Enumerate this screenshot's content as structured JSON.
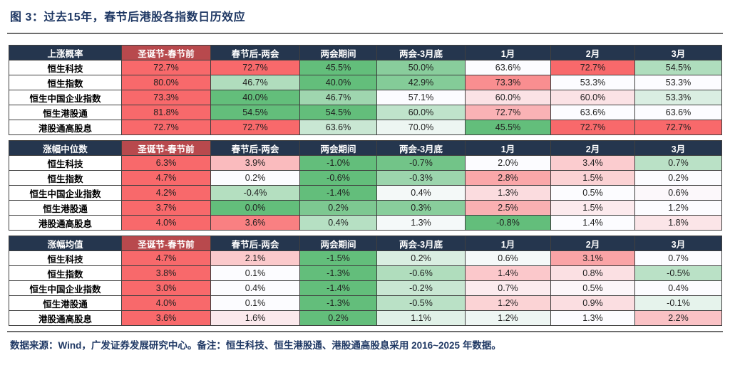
{
  "title": "图 3：过去15年，春节后港股各指数日历效应",
  "footer": "数据来源：Wind，广发证券发展研究中心。备注：恒生科技、恒生港股通、港股通高股息采用 2016~2025 年数据。",
  "colors": {
    "title_text": "#1F3864",
    "header_bg": "#25364E",
    "header_highlight_bg": "#B8494D",
    "header_text": "#FFFFFF",
    "scale_green": "#63BE7B",
    "scale_mid": "#FCFCFF",
    "scale_red": "#F8696B",
    "cell_border": "#404040"
  },
  "value_format": {
    "decimals": 1,
    "suffix": "%"
  },
  "chart_data": [
    {
      "type": "heatmap",
      "title": "上涨概率",
      "columns": [
        "圣诞节-春节前",
        "春节后-两会",
        "两会期间",
        "两会-3月底",
        "1月",
        "2月",
        "3月"
      ],
      "color_scale": {
        "min_color": "#63BE7B",
        "mid_color": "#FCFCFF",
        "max_color": "#F8696B",
        "midpoint": "row median (50th percentile)"
      },
      "rows": [
        {
          "label": "恒生科技",
          "values": [
            72.7,
            72.7,
            45.5,
            50.0,
            63.6,
            72.7,
            54.5
          ]
        },
        {
          "label": "恒生指数",
          "values": [
            80.0,
            46.7,
            40.0,
            42.9,
            73.3,
            53.3,
            53.3
          ]
        },
        {
          "label": "恒生中国企业指数",
          "values": [
            73.3,
            40.0,
            46.7,
            57.1,
            60.0,
            60.0,
            53.3
          ]
        },
        {
          "label": "恒生港股通",
          "values": [
            81.8,
            54.5,
            54.5,
            60.0,
            72.7,
            63.6,
            63.6
          ]
        },
        {
          "label": "港股通高股息",
          "values": [
            72.7,
            72.7,
            63.6,
            70.0,
            45.5,
            72.7,
            72.7
          ]
        }
      ]
    },
    {
      "type": "heatmap",
      "title": "涨幅中位数",
      "columns": [
        "圣诞节-春节前",
        "春节后-两会",
        "两会期间",
        "两会-3月底",
        "1月",
        "2月",
        "3月"
      ],
      "color_scale": {
        "min_color": "#63BE7B",
        "mid_color": "#FCFCFF",
        "max_color": "#F8696B",
        "midpoint": "row median (50th percentile)"
      },
      "rows": [
        {
          "label": "恒生科技",
          "values": [
            6.3,
            3.9,
            -1.0,
            -0.7,
            2.0,
            3.4,
            0.7
          ]
        },
        {
          "label": "恒生指数",
          "values": [
            4.7,
            0.2,
            -0.6,
            -0.3,
            2.8,
            1.5,
            0.2
          ]
        },
        {
          "label": "恒生中国企业指数",
          "values": [
            4.2,
            -0.4,
            -1.4,
            0.4,
            1.3,
            0.5,
            0.6
          ]
        },
        {
          "label": "恒生港股通",
          "values": [
            3.7,
            0.0,
            0.2,
            0.3,
            2.5,
            1.5,
            1.2
          ]
        },
        {
          "label": "港股通高股息",
          "values": [
            4.0,
            3.6,
            0.4,
            1.3,
            -0.8,
            1.4,
            1.8
          ]
        }
      ]
    },
    {
      "type": "heatmap",
      "title": "涨幅均值",
      "columns": [
        "圣诞节-春节前",
        "春节后-两会",
        "两会期间",
        "两会-3月底",
        "1月",
        "2月",
        "3月"
      ],
      "color_scale": {
        "min_color": "#63BE7B",
        "mid_color": "#FCFCFF",
        "max_color": "#F8696B",
        "midpoint": "row median (50th percentile)"
      },
      "rows": [
        {
          "label": "恒生科技",
          "values": [
            4.7,
            2.1,
            -1.5,
            0.2,
            0.6,
            3.1,
            0.7
          ]
        },
        {
          "label": "恒生指数",
          "values": [
            3.8,
            0.1,
            -1.3,
            -0.6,
            1.4,
            0.8,
            -0.5
          ]
        },
        {
          "label": "恒生中国企业指数",
          "values": [
            3.0,
            0.4,
            -1.4,
            -0.2,
            0.7,
            0.5,
            0.4
          ]
        },
        {
          "label": "恒生港股通",
          "values": [
            4.0,
            0.1,
            -1.3,
            -0.5,
            1.2,
            0.9,
            -0.1
          ]
        },
        {
          "label": "港股通高股息",
          "values": [
            3.6,
            1.6,
            0.2,
            1.1,
            1.2,
            1.3,
            2.2
          ]
        }
      ]
    }
  ]
}
